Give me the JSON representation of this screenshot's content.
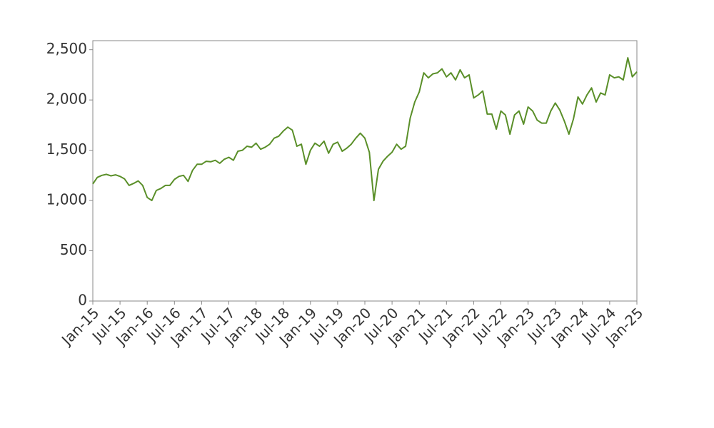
{
  "chart_data": {
    "type": "line",
    "color": "#5a8f29",
    "x": [
      "2015-01",
      "2015-02",
      "2015-03",
      "2015-04",
      "2015-05",
      "2015-06",
      "2015-07",
      "2015-08",
      "2015-09",
      "2015-10",
      "2015-11",
      "2015-12",
      "2016-01",
      "2016-02",
      "2016-03",
      "2016-04",
      "2016-05",
      "2016-06",
      "2016-07",
      "2016-08",
      "2016-09",
      "2016-10",
      "2016-11",
      "2016-12",
      "2017-01",
      "2017-02",
      "2017-03",
      "2017-04",
      "2017-05",
      "2017-06",
      "2017-07",
      "2017-08",
      "2017-09",
      "2017-10",
      "2017-11",
      "2017-12",
      "2018-01",
      "2018-02",
      "2018-03",
      "2018-04",
      "2018-05",
      "2018-06",
      "2018-07",
      "2018-08",
      "2018-09",
      "2018-10",
      "2018-11",
      "2018-12",
      "2019-01",
      "2019-02",
      "2019-03",
      "2019-04",
      "2019-05",
      "2019-06",
      "2019-07",
      "2019-08",
      "2019-09",
      "2019-10",
      "2019-11",
      "2019-12",
      "2020-01",
      "2020-02",
      "2020-03",
      "2020-04",
      "2020-05",
      "2020-06",
      "2020-07",
      "2020-08",
      "2020-09",
      "2020-10",
      "2020-11",
      "2020-12",
      "2021-01",
      "2021-02",
      "2021-03",
      "2021-04",
      "2021-05",
      "2021-06",
      "2021-07",
      "2021-08",
      "2021-09",
      "2021-10",
      "2021-11",
      "2021-12",
      "2022-01",
      "2022-02",
      "2022-03",
      "2022-04",
      "2022-05",
      "2022-06",
      "2022-07",
      "2022-08",
      "2022-09",
      "2022-10",
      "2022-11",
      "2022-12",
      "2023-01",
      "2023-02",
      "2023-03",
      "2023-04",
      "2023-05",
      "2023-06",
      "2023-07",
      "2023-08",
      "2023-09",
      "2023-10",
      "2023-11",
      "2023-12",
      "2024-01",
      "2024-02",
      "2024-03",
      "2024-04",
      "2024-05",
      "2024-06",
      "2024-07",
      "2024-08",
      "2024-09",
      "2024-10",
      "2024-11",
      "2024-12",
      "2025-01"
    ],
    "values": [
      1165,
      1230,
      1250,
      1260,
      1245,
      1255,
      1240,
      1215,
      1150,
      1170,
      1195,
      1150,
      1030,
      1000,
      1100,
      1120,
      1150,
      1150,
      1210,
      1240,
      1250,
      1190,
      1300,
      1360,
      1360,
      1390,
      1385,
      1400,
      1370,
      1410,
      1430,
      1400,
      1490,
      1500,
      1540,
      1530,
      1570,
      1510,
      1530,
      1560,
      1620,
      1640,
      1690,
      1730,
      1700,
      1540,
      1560,
      1360,
      1500,
      1570,
      1540,
      1590,
      1470,
      1560,
      1580,
      1490,
      1520,
      1560,
      1620,
      1670,
      1620,
      1480,
      1000,
      1310,
      1390,
      1440,
      1480,
      1560,
      1510,
      1540,
      1820,
      1980,
      2080,
      2270,
      2220,
      2260,
      2270,
      2310,
      2230,
      2270,
      2200,
      2300,
      2220,
      2250,
      2020,
      2050,
      2090,
      1860,
      1860,
      1710,
      1890,
      1850,
      1660,
      1850,
      1890,
      1760,
      1930,
      1890,
      1800,
      1770,
      1770,
      1890,
      1970,
      1900,
      1790,
      1660,
      1810,
      2030,
      1960,
      2050,
      2120,
      1980,
      2070,
      2050,
      2250,
      2220,
      2230,
      2200,
      2420,
      2230,
      2280
    ],
    "xlim": [
      "2015-01",
      "2025-01"
    ],
    "xticks": [
      {
        "value": "2015-01",
        "label": "Jan-15"
      },
      {
        "value": "2015-07",
        "label": "Jul-15"
      },
      {
        "value": "2016-01",
        "label": "Jan-16"
      },
      {
        "value": "2016-07",
        "label": "Jul-16"
      },
      {
        "value": "2017-01",
        "label": "Jan-17"
      },
      {
        "value": "2017-07",
        "label": "Jul-17"
      },
      {
        "value": "2018-01",
        "label": "Jan-18"
      },
      {
        "value": "2018-07",
        "label": "Jul-18"
      },
      {
        "value": "2019-01",
        "label": "Jan-19"
      },
      {
        "value": "2019-07",
        "label": "Jul-19"
      },
      {
        "value": "2020-01",
        "label": "Jan-20"
      },
      {
        "value": "2020-07",
        "label": "Jul-20"
      },
      {
        "value": "2021-01",
        "label": "Jan-21"
      },
      {
        "value": "2021-07",
        "label": "Jul-21"
      },
      {
        "value": "2022-01",
        "label": "Jan-22"
      },
      {
        "value": "2022-07",
        "label": "Jul-22"
      },
      {
        "value": "2023-01",
        "label": "Jan-23"
      },
      {
        "value": "2023-07",
        "label": "Jul-23"
      },
      {
        "value": "2024-01",
        "label": "Jan-24"
      },
      {
        "value": "2024-07",
        "label": "Jul-24"
      },
      {
        "value": "2025-01",
        "label": "Jan-25"
      }
    ],
    "ylim": [
      0,
      2590
    ],
    "yticks": [
      0,
      {
        "value": 500,
        "label": "500"
      },
      {
        "value": 1000,
        "label": "1,000"
      },
      {
        "value": 1500,
        "label": "1,500"
      },
      {
        "value": 2000,
        "label": "2,000"
      },
      {
        "value": 2500,
        "label": "2,500"
      }
    ],
    "grid": false
  }
}
